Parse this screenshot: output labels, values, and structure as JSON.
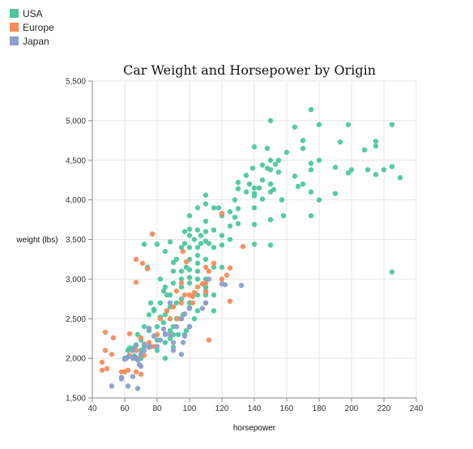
{
  "chart_data": {
    "type": "scatter",
    "title": "Car Weight and Horsepower by Origin",
    "xlabel": "horsepower",
    "ylabel": "weight (lbs)",
    "xlim": [
      40,
      240
    ],
    "ylim": [
      1500,
      5500
    ],
    "x_ticks": [
      "40",
      "60",
      "80",
      "100",
      "120",
      "140",
      "160",
      "180",
      "200",
      "220",
      "240"
    ],
    "y_ticks": [
      "1,500",
      "2,000",
      "2,500",
      "3,000",
      "3,500",
      "4,000",
      "4,500",
      "5,000",
      "5,500"
    ],
    "grid": true,
    "legend_position": "top-left",
    "series": [
      {
        "name": "USA",
        "color": "#4cc79f",
        "points": [
          [
            72,
            3440
          ],
          [
            74,
            3150
          ],
          [
            77,
            3570
          ],
          [
            80,
            3440
          ],
          [
            82,
            3000
          ],
          [
            85,
            2900
          ],
          [
            85,
            3350
          ],
          [
            88,
            3470
          ],
          [
            88,
            2800
          ],
          [
            90,
            3210
          ],
          [
            90,
            3100
          ],
          [
            90,
            2950
          ],
          [
            92,
            3250
          ],
          [
            95,
            3400
          ],
          [
            95,
            3100
          ],
          [
            95,
            3000
          ],
          [
            97,
            3600
          ],
          [
            97,
            3450
          ],
          [
            98,
            3150
          ],
          [
            100,
            3800
          ],
          [
            100,
            3630
          ],
          [
            100,
            3550
          ],
          [
            100,
            3400
          ],
          [
            100,
            3250
          ],
          [
            100,
            3120
          ],
          [
            100,
            3020
          ],
          [
            103,
            3500
          ],
          [
            105,
            3900
          ],
          [
            105,
            3620
          ],
          [
            105,
            3400
          ],
          [
            105,
            3300
          ],
          [
            105,
            3200
          ],
          [
            105,
            3100
          ],
          [
            105,
            3000
          ],
          [
            107,
            3550
          ],
          [
            107,
            3450
          ],
          [
            110,
            4060
          ],
          [
            110,
            3950
          ],
          [
            110,
            3730
          ],
          [
            110,
            3600
          ],
          [
            110,
            3480
          ],
          [
            110,
            3250
          ],
          [
            110,
            3000
          ],
          [
            110,
            2850
          ],
          [
            112,
            3450
          ],
          [
            115,
            3900
          ],
          [
            115,
            3620
          ],
          [
            115,
            3400
          ],
          [
            115,
            3150
          ],
          [
            118,
            3900
          ],
          [
            120,
            3800
          ],
          [
            120,
            3550
          ],
          [
            120,
            3430
          ],
          [
            120,
            3150
          ],
          [
            125,
            3850
          ],
          [
            125,
            3670
          ],
          [
            125,
            3500
          ],
          [
            128,
            3780
          ],
          [
            128,
            4000
          ],
          [
            130,
            4220
          ],
          [
            130,
            4140
          ],
          [
            130,
            3890
          ],
          [
            130,
            3700
          ],
          [
            135,
            4310
          ],
          [
            135,
            4100
          ],
          [
            137,
            4200
          ],
          [
            139,
            4400
          ],
          [
            140,
            4670
          ],
          [
            140,
            4150
          ],
          [
            140,
            4080
          ],
          [
            140,
            4050
          ],
          [
            140,
            3900
          ],
          [
            140,
            3690
          ],
          [
            140,
            3440
          ],
          [
            143,
            4150
          ],
          [
            145,
            4440
          ],
          [
            145,
            4250
          ],
          [
            145,
            4010
          ],
          [
            148,
            4650
          ],
          [
            148,
            4400
          ],
          [
            150,
            5000
          ],
          [
            150,
            4500
          ],
          [
            150,
            4380
          ],
          [
            150,
            4200
          ],
          [
            150,
            4100
          ],
          [
            150,
            3750
          ],
          [
            150,
            3430
          ],
          [
            152,
            4130
          ],
          [
            153,
            4450
          ],
          [
            155,
            4500
          ],
          [
            155,
            4350
          ],
          [
            157,
            4000
          ],
          [
            158,
            3800
          ],
          [
            160,
            4600
          ],
          [
            165,
            4920
          ],
          [
            165,
            4300
          ],
          [
            167,
            4170
          ],
          [
            170,
            4750
          ],
          [
            170,
            4650
          ],
          [
            170,
            4200
          ],
          [
            175,
            5140
          ],
          [
            175,
            4460
          ],
          [
            175,
            4380
          ],
          [
            175,
            4100
          ],
          [
            175,
            3800
          ],
          [
            180,
            4950
          ],
          [
            180,
            4500
          ],
          [
            180,
            4000
          ],
          [
            190,
            4410
          ],
          [
            190,
            4080
          ],
          [
            193,
            4730
          ],
          [
            198,
            4950
          ],
          [
            198,
            4340
          ],
          [
            200,
            4380
          ],
          [
            208,
            4630
          ],
          [
            210,
            4380
          ],
          [
            215,
            4740
          ],
          [
            215,
            4680
          ],
          [
            215,
            4320
          ],
          [
            220,
            4380
          ],
          [
            225,
            4950
          ],
          [
            225,
            4420
          ],
          [
            225,
            3090
          ],
          [
            230,
            4280
          ],
          [
            65,
            2130
          ],
          [
            67,
            2170
          ],
          [
            68,
            2300
          ],
          [
            70,
            2230
          ],
          [
            70,
            2100
          ],
          [
            72,
            2400
          ],
          [
            75,
            2550
          ],
          [
            75,
            2350
          ],
          [
            78,
            2600
          ],
          [
            80,
            2400
          ],
          [
            82,
            2700
          ],
          [
            85,
            2550
          ],
          [
            85,
            2200
          ],
          [
            85,
            2000
          ],
          [
            86,
            2800
          ],
          [
            88,
            2650
          ],
          [
            88,
            2500
          ],
          [
            88,
            2350
          ],
          [
            90,
            2650
          ],
          [
            90,
            2400
          ],
          [
            90,
            2300
          ],
          [
            92,
            2500
          ],
          [
            95,
            2750
          ],
          [
            95,
            2900
          ],
          [
            96,
            2550
          ],
          [
            100,
            2950
          ],
          [
            100,
            2700
          ],
          [
            100,
            2400
          ],
          [
            103,
            2500
          ],
          [
            105,
            2800
          ],
          [
            105,
            2600
          ],
          [
            110,
            2900
          ],
          [
            110,
            2800
          ],
          [
            110,
            2700
          ],
          [
            115,
            2800
          ],
          [
            115,
            2600
          ],
          [
            60,
            2000
          ],
          [
            62,
            2100
          ],
          [
            63,
            2130
          ],
          [
            66,
            2030
          ],
          [
            68,
            1990
          ],
          [
            70,
            2000
          ],
          [
            72,
            2150
          ],
          [
            80,
            2100
          ],
          [
            84,
            2450
          ],
          [
            88,
            2250
          ],
          [
            90,
            2140
          ],
          [
            92,
            2700
          ],
          [
            93,
            2300
          ],
          [
            97,
            2300
          ],
          [
            100,
            2640
          ],
          [
            80,
            2230
          ],
          [
            76,
            2700
          ],
          [
            78,
            2620
          ],
          [
            82,
            2520
          ],
          [
            84,
            2850
          ],
          [
            86,
            2600
          ],
          [
            95,
            2500
          ],
          [
            98,
            2350
          ]
        ]
      },
      {
        "name": "Europe",
        "color": "#f78b5a",
        "points": [
          [
            46,
            1950
          ],
          [
            46,
            1850
          ],
          [
            48,
            2100
          ],
          [
            48,
            2330
          ],
          [
            49,
            1870
          ],
          [
            52,
            2050
          ],
          [
            53,
            2260
          ],
          [
            58,
            1830
          ],
          [
            60,
            1830
          ],
          [
            62,
            1850
          ],
          [
            63,
            2040
          ],
          [
            65,
            2100
          ],
          [
            67,
            1830
          ],
          [
            67,
            2100
          ],
          [
            68,
            2000
          ],
          [
            70,
            1800
          ],
          [
            70,
            2260
          ],
          [
            71,
            3200
          ],
          [
            74,
            3130
          ],
          [
            67,
            3250
          ],
          [
            67,
            2960
          ],
          [
            75,
            2200
          ],
          [
            76,
            2150
          ],
          [
            78,
            2150
          ],
          [
            80,
            2300
          ],
          [
            82,
            2500
          ],
          [
            86,
            2600
          ],
          [
            88,
            2500
          ],
          [
            90,
            2650
          ],
          [
            92,
            2850
          ],
          [
            93,
            2500
          ],
          [
            95,
            2700
          ],
          [
            95,
            2950
          ],
          [
            96,
            3350
          ],
          [
            97,
            2800
          ],
          [
            98,
            3220
          ],
          [
            100,
            2800
          ],
          [
            102,
            2700
          ],
          [
            105,
            2900
          ],
          [
            110,
            3150
          ],
          [
            110,
            2950
          ],
          [
            110,
            2700
          ],
          [
            112,
            3100
          ],
          [
            115,
            3200
          ],
          [
            120,
            3000
          ],
          [
            123,
            3050
          ],
          [
            125,
            3140
          ],
          [
            125,
            2720
          ],
          [
            133,
            3410
          ],
          [
            120,
            3830
          ],
          [
            77,
            3570
          ],
          [
            112,
            2230
          ],
          [
            63,
            2310
          ],
          [
            72,
            2040
          ],
          [
            102,
            2780
          ],
          [
            110,
            2840
          ],
          [
            103,
            2830
          ],
          [
            108,
            2940
          ]
        ]
      },
      {
        "name": "Japan",
        "color": "#8d9ecb",
        "points": [
          [
            52,
            1650
          ],
          [
            58,
            1760
          ],
          [
            58,
            1740
          ],
          [
            60,
            1990
          ],
          [
            61,
            2000
          ],
          [
            62,
            2020
          ],
          [
            65,
            1770
          ],
          [
            65,
            2000
          ],
          [
            65,
            2100
          ],
          [
            67,
            2000
          ],
          [
            68,
            1980
          ],
          [
            69,
            1920
          ],
          [
            70,
            1900
          ],
          [
            70,
            2050
          ],
          [
            72,
            2180
          ],
          [
            72,
            2100
          ],
          [
            75,
            2140
          ],
          [
            75,
            2380
          ],
          [
            78,
            2280
          ],
          [
            80,
            2150
          ],
          [
            82,
            2230
          ],
          [
            84,
            2370
          ],
          [
            85,
            2300
          ],
          [
            88,
            2300
          ],
          [
            90,
            2100
          ],
          [
            92,
            2400
          ],
          [
            95,
            2050
          ],
          [
            95,
            2500
          ],
          [
            96,
            2200
          ],
          [
            97,
            2280
          ],
          [
            97,
            2560
          ],
          [
            100,
            2630
          ],
          [
            100,
            2400
          ],
          [
            108,
            2630
          ],
          [
            110,
            2700
          ],
          [
            112,
            3000
          ],
          [
            120,
            2940
          ],
          [
            122,
            2930
          ],
          [
            132,
            2920
          ],
          [
            88,
            2700
          ],
          [
            67,
            2160
          ],
          [
            75,
            2150
          ],
          [
            68,
            1620
          ],
          [
            62,
            1650
          ],
          [
            85,
            2310
          ],
          [
            90,
            2200
          ]
        ]
      }
    ]
  }
}
